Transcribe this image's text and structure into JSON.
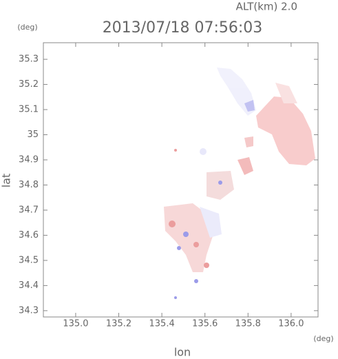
{
  "chart_data": {
    "type": "map",
    "title": "2013/07/18 07:56:03",
    "subtitle": "ALT(km) 2.0",
    "x_label": "lon",
    "x_unit": "(deg)",
    "y_label": "lat",
    "y_unit": "(deg)",
    "xlim": [
      134.85,
      136.125
    ],
    "ylim": [
      34.275,
      35.366
    ],
    "xticks": [
      {
        "value": 135,
        "label": "135.0"
      },
      135.2,
      135.4,
      135.6,
      135.8,
      {
        "value": 136,
        "label": "136.0"
      }
    ],
    "yticks": [
      34.3,
      34.4,
      34.5,
      34.6,
      34.7,
      34.8,
      34.9,
      35.0,
      35.1,
      35.2,
      35.3
    ]
  }
}
